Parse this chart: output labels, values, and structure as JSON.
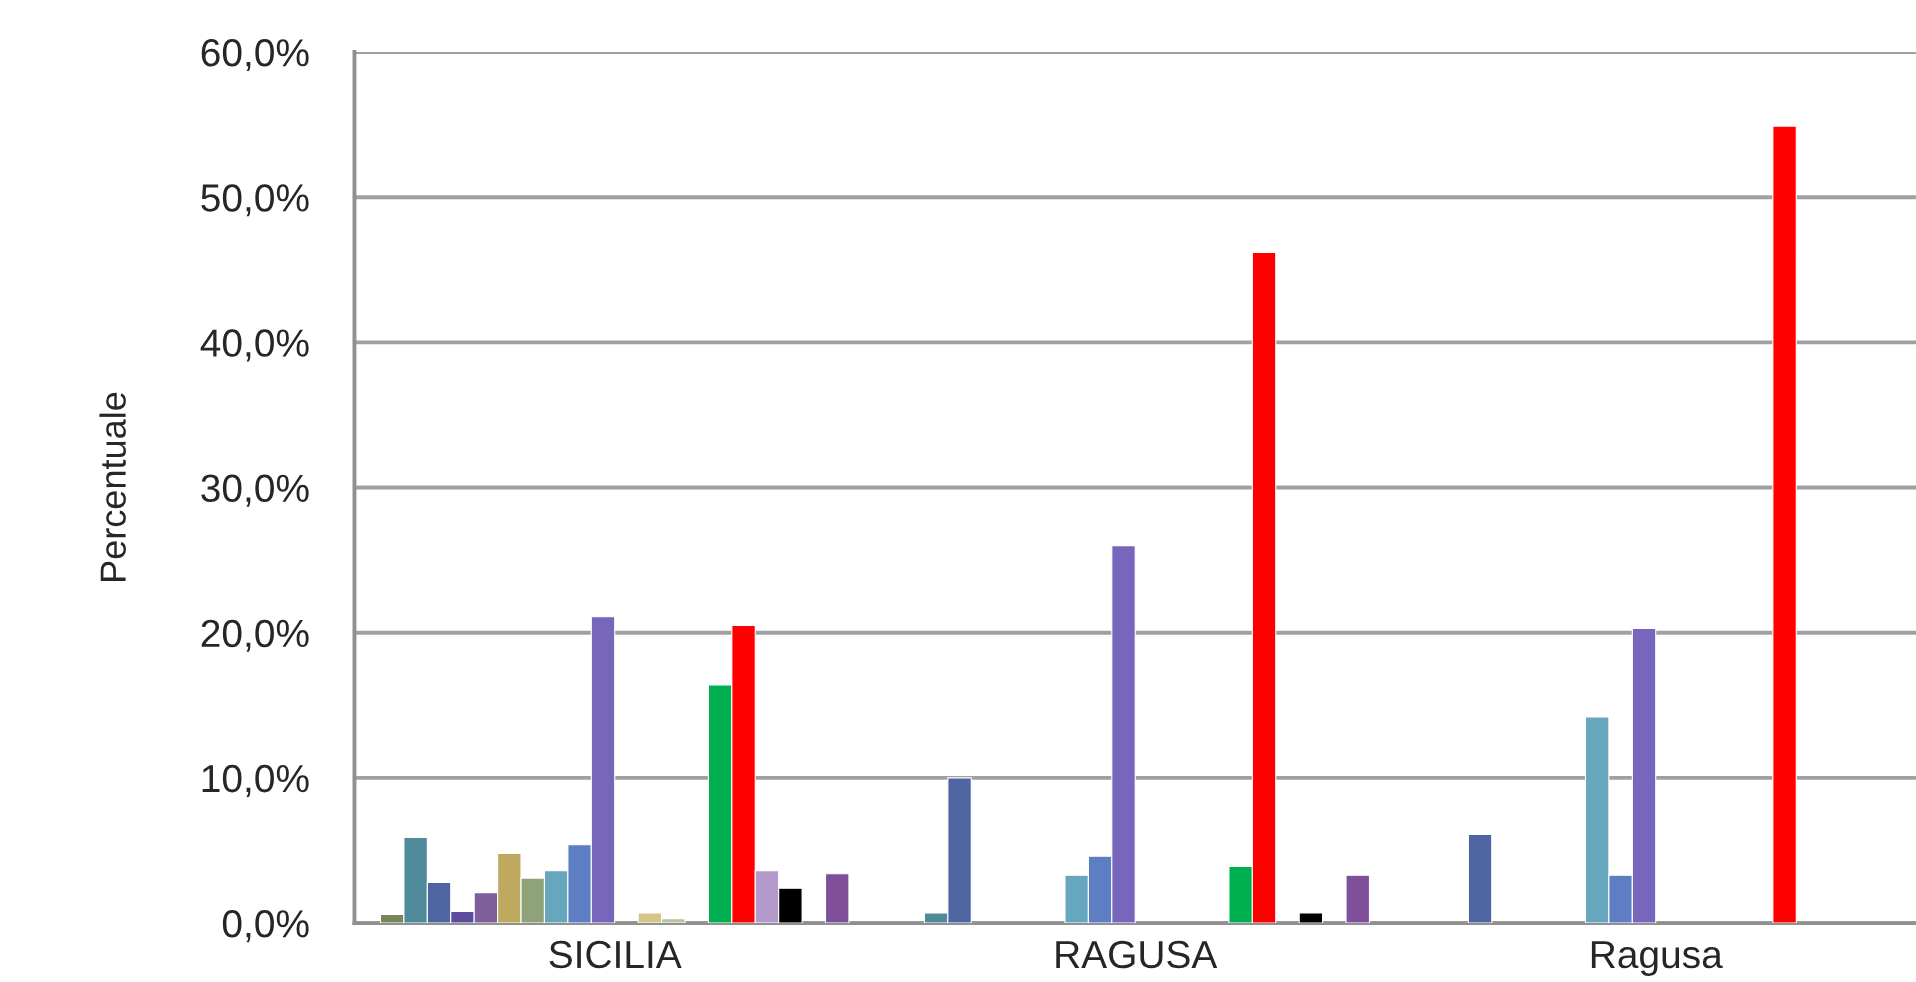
{
  "chart_data": {
    "type": "bar",
    "ylabel": "Percentuale",
    "categories": [
      "SICILIA",
      "RAGUSA",
      "Ragusa"
    ],
    "series": [
      {
        "color": "#77855a",
        "values": [
          0.6,
          null,
          null
        ]
      },
      {
        "color": "#4f8a9b",
        "values": [
          5.9,
          0.7,
          null
        ]
      },
      {
        "color": "#4f66a3",
        "values": [
          2.8,
          10.0,
          6.1
        ]
      },
      {
        "color": "#5b4ca0",
        "values": [
          0.8,
          null,
          null
        ]
      },
      {
        "color": "#7f5f9a",
        "values": [
          2.1,
          null,
          null
        ]
      },
      {
        "color": "#bfa960",
        "values": [
          4.8,
          null,
          null
        ]
      },
      {
        "color": "#8fa37a",
        "values": [
          3.1,
          null,
          null
        ]
      },
      {
        "color": "#66a7bd",
        "values": [
          3.6,
          3.3,
          14.2
        ]
      },
      {
        "color": "#5e7ec4",
        "values": [
          5.4,
          4.6,
          3.3
        ]
      },
      {
        "color": "#7766bb",
        "values": [
          21.1,
          26.0,
          20.3
        ]
      },
      {
        "color": "#d4c58a",
        "values": [
          null,
          null,
          null
        ]
      },
      {
        "color": "#d4c58a",
        "values": [
          0.7,
          null,
          null
        ]
      },
      {
        "color": "#b8c49a",
        "values": [
          0.3,
          null,
          null
        ]
      },
      {
        "color": "#c0c0c0",
        "values": [
          null,
          null,
          null
        ]
      },
      {
        "color": "#00b050",
        "values": [
          16.4,
          3.9,
          null
        ]
      },
      {
        "color": "#ff0000",
        "values": [
          20.5,
          46.2,
          54.9
        ]
      },
      {
        "color": "#b49aca",
        "values": [
          3.6,
          null,
          null
        ]
      },
      {
        "color": "#000000",
        "values": [
          2.4,
          0.7,
          null
        ]
      },
      {
        "color": "#c0c0c0",
        "values": [
          null,
          null,
          null
        ]
      },
      {
        "color": "#7f4f9a",
        "values": [
          3.4,
          3.3,
          null
        ]
      }
    ],
    "ylim": [
      0,
      60
    ],
    "yticks": [
      {
        "value": 0,
        "label": "0,0%"
      },
      {
        "value": 10,
        "label": "10,0%"
      },
      {
        "value": 20,
        "label": "20,0%"
      },
      {
        "value": 30,
        "label": "30,0%"
      },
      {
        "value": 40,
        "label": "40,0%"
      },
      {
        "value": 50,
        "label": "50,0%"
      },
      {
        "value": 60,
        "label": "60,0%"
      }
    ],
    "grid": "y"
  }
}
